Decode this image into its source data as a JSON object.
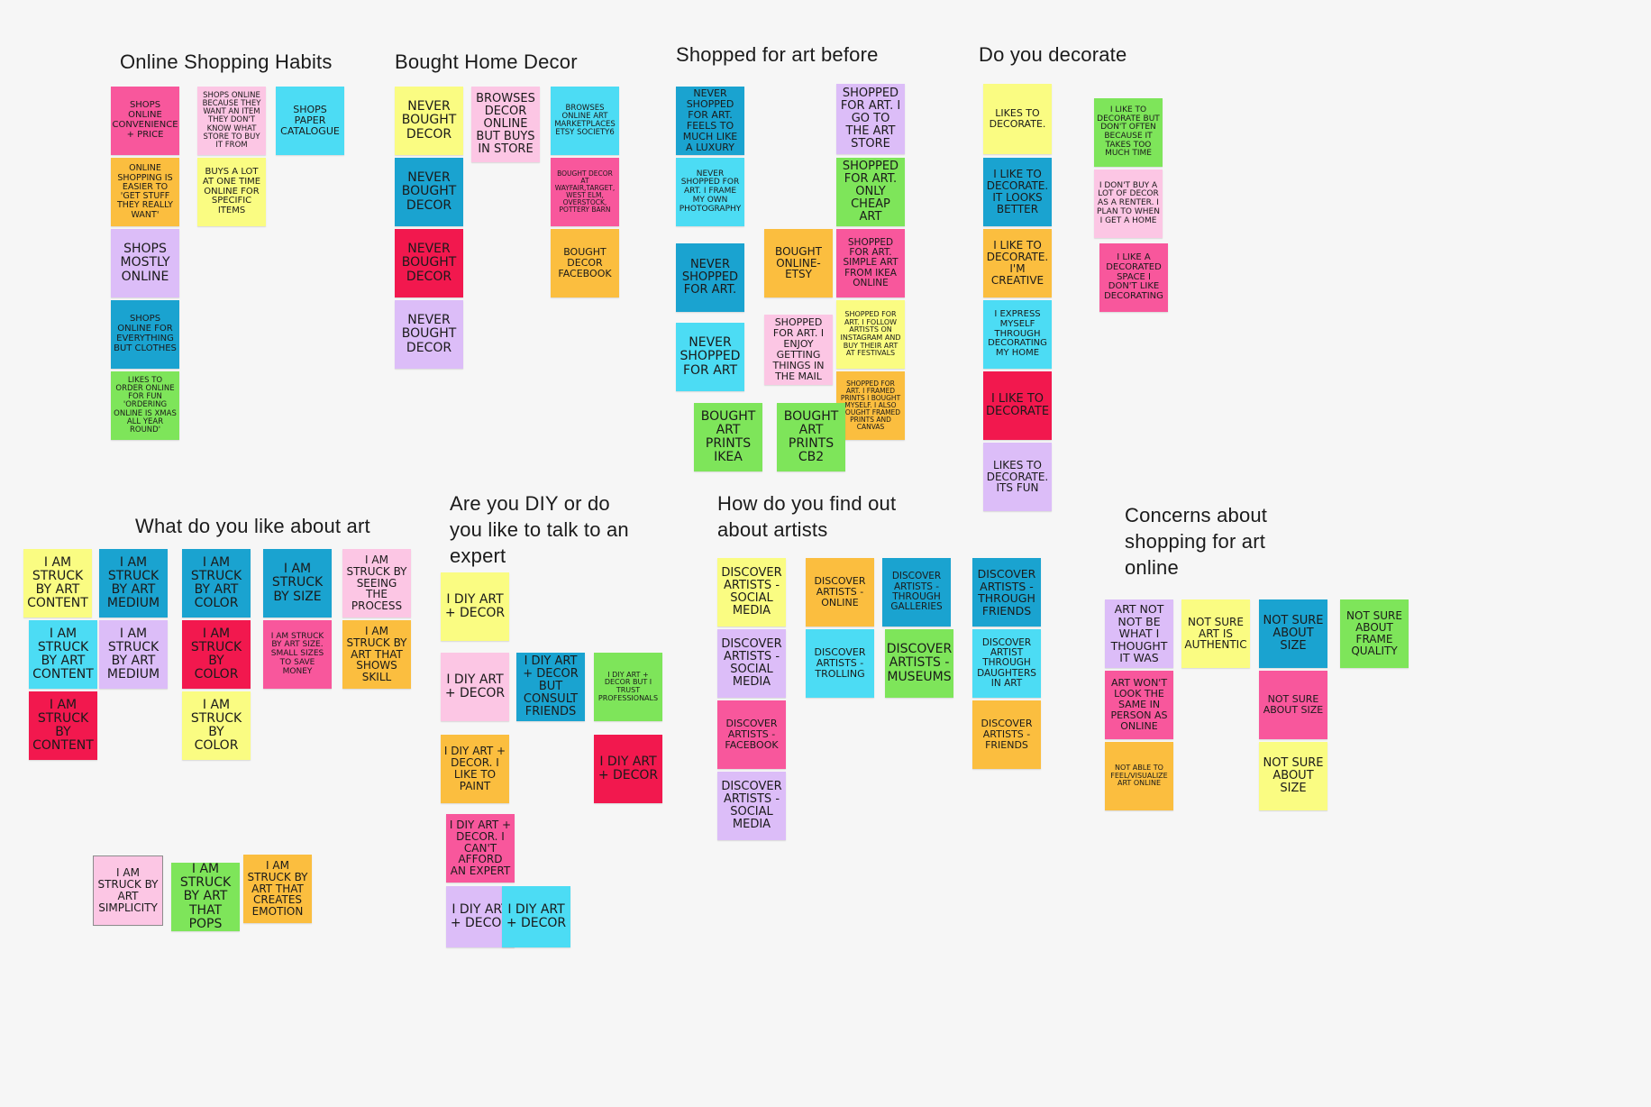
{
  "board": {
    "titles": [
      "Online Shopping Habits",
      "Bought Home Decor",
      "Shopped for art before",
      "Do you decorate",
      "What do you like about art",
      "Are you DIY or do\nyou like to talk to an\nexpert",
      "How do you find out\nabout artists",
      "Concerns about\nshopping for art\nonline"
    ],
    "colors": {
      "pink": "#f8579c",
      "light_pink": "#fcc6e4",
      "cyan": "#4cdcf4",
      "blue": "#1aa3d0",
      "orange": "#fbbe3f",
      "yellow": "#fafc82",
      "lilac": "#dcbdf8",
      "green": "#7ee55a",
      "red": "#f2184e"
    },
    "notes": [
      "Shops online convenience + price",
      "Shops online because they want an item they don't know what store to buy it from",
      "Shops paper catalogue",
      "Online shopping is easier to 'get stuff they really want'",
      "Buys a lot at one time online for specific items",
      "Shops mostly online",
      "Shops online for everything but clothes",
      "Likes to order online for fun 'ordering online is xmas all year round'",
      "Never bought decor",
      "Browses decor online but buys in store",
      "Browses online art marketplaces Etsy Society6",
      "Never bought decor",
      "Bought decor at Wayfair,Target, West Elm, Overstock, Pottery Barn",
      "Never bought decor",
      "Bought decor Facebook",
      "Never bought decor",
      "Never shopped for art. Feels to much like a luxury",
      "Shopped for art. I go to the art store",
      "Never shopped for art. I frame my own photography",
      "Shopped for art. Only cheap art",
      "Never shopped for art.",
      "Bought online- Etsy",
      "Shopped for art. Simple art from Ikea online",
      "Never shopped for art",
      "Shopped for art. I enjoy getting things in the mail",
      "Shopped for art. I follow artists on instagram and buy their art at festivals",
      "Shopped for art. I framed prints I bought myself. I also bought framed prints and canvas",
      "Bought art prints Ikea",
      "Bought art prints CB2",
      "Likes to decorate.",
      "I like to decorate but don't often because it takes too much time",
      "I like to decorate. It looks better",
      "I don't buy a lot of decor as a renter. I plan to when I get a home",
      "I like to decorate. I'm creative",
      "I like a decorated space I don't like decorating",
      "I express myself through decorating my home",
      "I like to decorate",
      "Likes to decorate. Its fun",
      "I am struck by art content",
      "I am struck by art medium",
      "I am struck by art color",
      "I am struck by size",
      "I am struck by seeing the process",
      "I am struck by art content",
      "I am struck by art medium",
      "I am struck by color",
      "I am struck by art size. Small sizes to save money",
      "I am struck by art that shows skill",
      "I am struck by content",
      "I am struck by color",
      "I am struck by art simplicity",
      "I am struck by art that pops",
      "I am struck by art that creates emotion",
      "I DIY art + decor",
      "I DIY art + decor",
      "I DIY art + decor but consult friends",
      "I DIY art + decor but I trust professionals",
      "I DIY art + decor. I like to paint",
      "I DIY art + decor",
      "I DIY art + decor. I can't afford an expert",
      "I DIY art + decor",
      "I DIY art + decor",
      "Discover artists - social media",
      "Discover artists - online",
      "Discover artists - through galleries",
      "Discover artists - through friends",
      "Discover artists - social media",
      "Discover artists - trolling",
      "Discover artists - museums",
      "Discover artist through daughters in art",
      "Discover artists - Facebook",
      "Discover artists - friends",
      "Discover artists - social media",
      "Art not not be what I thought it was",
      "Not sure art is authentic",
      "Not sure about size",
      "Not sure about frame quality",
      "Art won't look the same in person as online",
      "Not sure about size",
      "Not able to feel/visualize art online",
      "Not sure about size"
    ]
  }
}
